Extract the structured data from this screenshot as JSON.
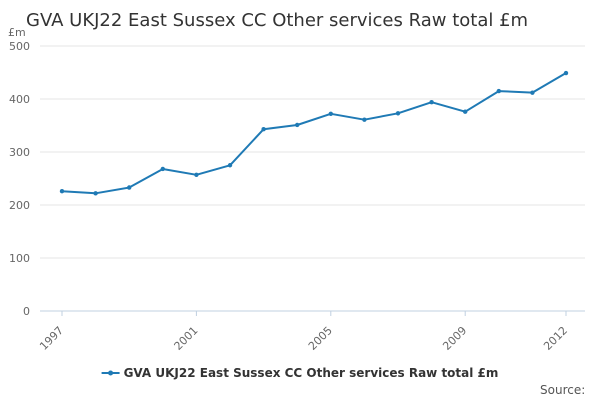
{
  "chart_data": {
    "type": "line",
    "title": "GVA UKJ22 East Sussex CC Other services Raw total £m",
    "ylabel": "£m",
    "xlabel": "",
    "x": [
      1997,
      1998,
      1999,
      2000,
      2001,
      2002,
      2003,
      2004,
      2005,
      2006,
      2007,
      2008,
      2009,
      2010,
      2011,
      2012
    ],
    "series": [
      {
        "name": "GVA UKJ22 East Sussex CC Other services Raw total £m",
        "values": [
          226,
          222,
          233,
          268,
          257,
          275,
          343,
          351,
          372,
          361,
          373,
          394,
          376,
          415,
          412,
          449
        ]
      }
    ],
    "ylim": [
      0,
      500
    ],
    "yticks": [
      0,
      100,
      200,
      300,
      400,
      500
    ],
    "xticks": [
      "1997",
      "2001",
      "2005",
      "2009",
      "2012"
    ],
    "grid": true,
    "legend_position": "bottom",
    "source_label": "Source:",
    "colors": {
      "series": "#1f7ab5",
      "grid": "#e6e6e6",
      "axis": "#c0d0e0"
    }
  }
}
